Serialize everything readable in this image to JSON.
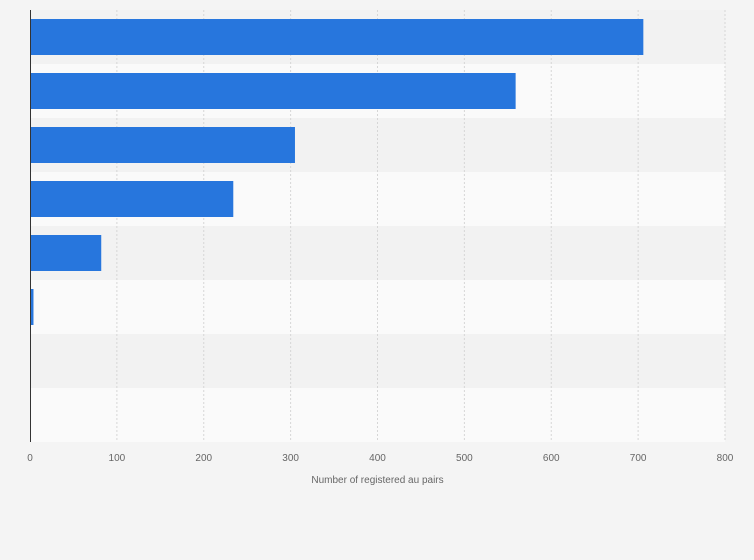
{
  "chart_data": {
    "type": "bar",
    "orientation": "horizontal",
    "categories": [
      "",
      "",
      "",
      "",
      "",
      "",
      "",
      ""
    ],
    "values": [
      706,
      559,
      305,
      234,
      82,
      4,
      1,
      0
    ],
    "title": "",
    "xlabel": "Number of registered au pairs",
    "ylabel": "",
    "xlim": [
      0,
      800
    ],
    "xticks": [
      0,
      100,
      200,
      300,
      400,
      500,
      600,
      700,
      800
    ],
    "xtick_labels": [
      "0",
      "100",
      "200",
      "300",
      "400",
      "500",
      "600",
      "700",
      "800"
    ],
    "grid": "vertical-dashed",
    "band_colors": [
      "#f2f2f2",
      "#fafafa"
    ],
    "bar_color": "#2776dd",
    "background": "#f4f4f4"
  }
}
